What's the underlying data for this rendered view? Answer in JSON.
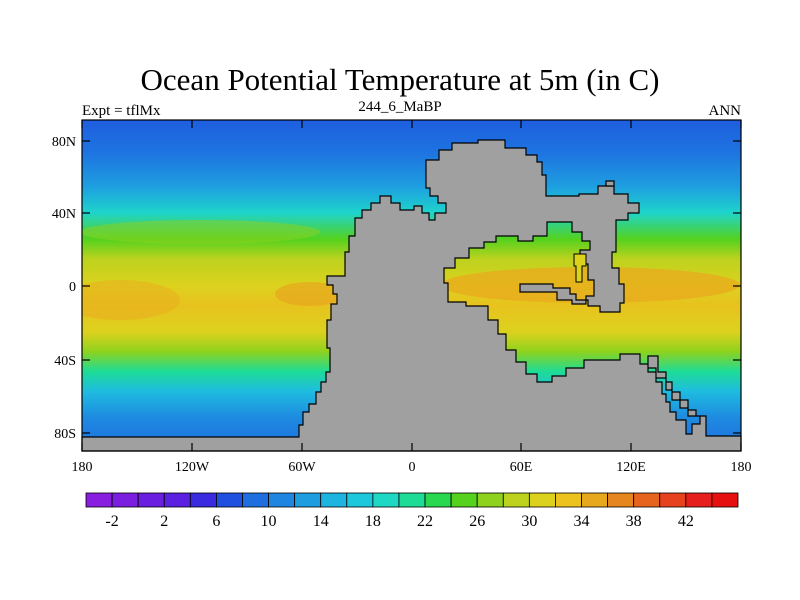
{
  "title": "Ocean Potential Temperature at 5m (in C)",
  "center_subtitle": "244_6_MaBP",
  "left_label": "Expt = tflMx",
  "right_label": "ANN",
  "land_color": "#a0a0a0",
  "lat_ticks": [
    "80N",
    "40N",
    "0",
    "40S",
    "80S"
  ],
  "lon_ticks": [
    "180",
    "120W",
    "60W",
    "0",
    "60E",
    "120E",
    "180"
  ],
  "colorbar": {
    "labels": [
      "-2",
      "2",
      "6",
      "10",
      "14",
      "18",
      "22",
      "26",
      "30",
      "34",
      "38",
      "42"
    ],
    "colors": [
      "#8a1ee0",
      "#7a1ee0",
      "#6a1ee0",
      "#5a22e0",
      "#3a2ae0",
      "#2050e0",
      "#1e6ee0",
      "#1e86e0",
      "#1e9ee0",
      "#1eb4e0",
      "#1ec8dc",
      "#1ed8c4",
      "#1edc96",
      "#2ad850",
      "#54d21e",
      "#8ed21e",
      "#bcd21e",
      "#dcd21e",
      "#ecc21e",
      "#e8a81e",
      "#e6861e",
      "#e6641e",
      "#e6421e",
      "#e61e1e",
      "#e61010"
    ]
  }
}
